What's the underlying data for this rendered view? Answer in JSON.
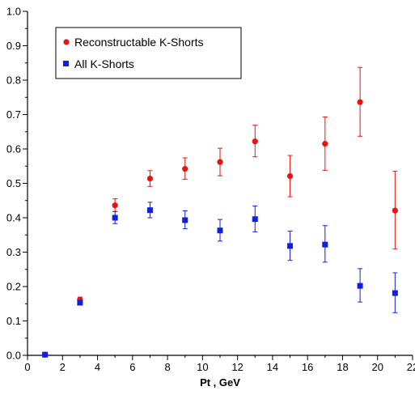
{
  "chart_data": {
    "type": "scatter",
    "title": "",
    "xlabel": "Pt , GeV",
    "ylabel": "",
    "xlim": [
      0,
      22
    ],
    "ylim": [
      0,
      1.0
    ],
    "x_ticks": [
      "0",
      "2",
      "4",
      "6",
      "8",
      "10",
      "12",
      "14",
      "16",
      "18",
      "20",
      "22"
    ],
    "y_ticks": [
      "0.0",
      "0.1",
      "0.2",
      "0.3",
      "0.4",
      "0.5",
      "0.6",
      "0.7",
      "0.8",
      "0.9",
      "1.0"
    ],
    "grid": false,
    "legend_position": "top-left",
    "series": [
      {
        "name": "Reconstructable K-Shorts",
        "marker": "circle",
        "color": "#e8140f",
        "x": [
          1,
          3,
          5,
          7,
          9,
          11,
          13,
          15,
          17,
          19,
          21
        ],
        "y": [
          0.002,
          0.162,
          0.436,
          0.514,
          0.542,
          0.562,
          0.622,
          0.521,
          0.615,
          0.736,
          0.421
        ],
        "ylow": [
          0.0,
          0.155,
          0.418,
          0.491,
          0.512,
          0.522,
          0.577,
          0.461,
          0.538,
          0.637,
          0.309
        ],
        "yhigh": [
          0.004,
          0.169,
          0.455,
          0.537,
          0.574,
          0.602,
          0.669,
          0.581,
          0.693,
          0.837,
          0.535
        ]
      },
      {
        "name": "All K-Shorts",
        "marker": "square",
        "color": "#1020e0",
        "x": [
          1,
          3,
          5,
          7,
          9,
          11,
          13,
          15,
          17,
          19,
          21
        ],
        "y": [
          0.002,
          0.153,
          0.4,
          0.422,
          0.393,
          0.363,
          0.396,
          0.318,
          0.322,
          0.202,
          0.181
        ],
        "ylow": [
          0.0,
          0.146,
          0.383,
          0.4,
          0.368,
          0.332,
          0.359,
          0.276,
          0.271,
          0.155,
          0.124
        ],
        "yhigh": [
          0.004,
          0.16,
          0.418,
          0.445,
          0.42,
          0.395,
          0.434,
          0.361,
          0.377,
          0.252,
          0.24
        ]
      }
    ]
  }
}
